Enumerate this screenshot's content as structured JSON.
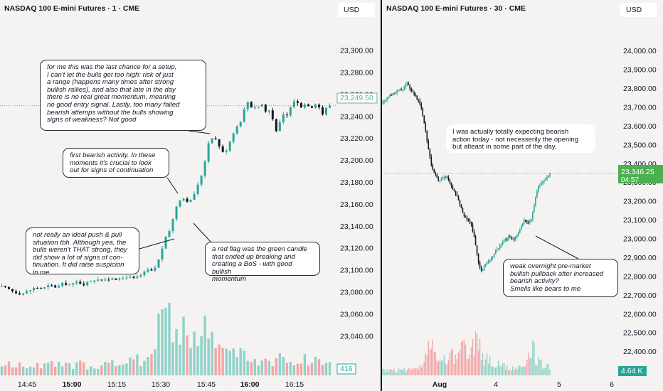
{
  "left_panel": {
    "title": "NASDAQ 100 E-mini Futures · 1 · CME",
    "currency": "USD",
    "price_label": "23,249.50",
    "volume_label": "416",
    "annotations": [
      "for me this was the last chance for a setup,\nI can't let the bulls get too high: risk of just\na range (happens many times after strong\nbullish rallies), and also that late in the day\nthere is no real great momentum, meaning\nno good entry signal. Lastly, too many failed\nbearish attemps without the bulls showing\nsigns of weakness? Not good",
      "first bearish activity. In these\nmoments it's crucial to look\nout for signs of continuation",
      "not really an ideal push & pull\nsituation tbh. Although yea, the\nbulls weren't THAT strong, they\ndid show a lot of signs of  con-\ntinuation. It did raise suspicion\nin me.",
      "a red flag was the green candle\nthat ended up breaking and\ncreating a BoS - with good bullish\nmomentum"
    ]
  },
  "right_panel": {
    "title": "NASDAQ 100 E-mini Futures · 30 · CME",
    "currency": "USD",
    "price_label": "23,346.25",
    "countdown_label": "04:57",
    "volume_label": "4.64 K",
    "annotations": [
      "I was actually totally expecting bearish\naction today - not necesserily the opening\nbut atleast in some part of the day.",
      "weak overnight pre-market\nbullish pullback after increased\nbearish activity?\nSmells like bears to me"
    ]
  },
  "colors": {
    "bull": "#26a69a",
    "bear": "#131722",
    "bull_volume": "#8fd1c8",
    "bear_volume": "#f3a5a5",
    "price_tag_left": "#5fb88f",
    "price_tag_right": "#4caf50"
  },
  "chart_data": [
    {
      "type": "candlestick",
      "timeframe": "1",
      "y_ticks": [
        "23,300.00",
        "23,280.00",
        "23,260.00",
        "23,240.00",
        "23,220.00",
        "23,200.00",
        "23,180.00",
        "23,160.00",
        "23,140.00",
        "23,120.00",
        "23,100.00",
        "23,080.00",
        "23,060.00",
        "23,040.00"
      ],
      "x_ticks": [
        "14:45",
        "15:00",
        "15:15",
        "15:30",
        "15:45",
        "16:00",
        "16:15"
      ],
      "x_tick_bold": [
        false,
        true,
        false,
        false,
        false,
        true,
        false
      ],
      "ylim": [
        23026,
        23312
      ],
      "close_path": [
        [
          0,
          23085
        ],
        [
          10,
          23083
        ],
        [
          20,
          23080
        ],
        [
          30,
          23078
        ],
        [
          40,
          23081
        ],
        [
          50,
          23084
        ],
        [
          60,
          23083
        ],
        [
          70,
          23086
        ],
        [
          80,
          23084
        ],
        [
          90,
          23088
        ],
        [
          100,
          23086
        ],
        [
          108,
          23089
        ],
        [
          118,
          23087
        ],
        [
          128,
          23090
        ],
        [
          138,
          23092
        ],
        [
          148,
          23090
        ],
        [
          158,
          23093
        ],
        [
          168,
          23091
        ],
        [
          178,
          23094
        ],
        [
          188,
          23092
        ],
        [
          198,
          23095
        ],
        [
          208,
          23100
        ],
        [
          215,
          23098
        ],
        [
          220,
          23105
        ],
        [
          225,
          23112
        ],
        [
          228,
          23120
        ],
        [
          232,
          23128
        ],
        [
          236,
          23132
        ],
        [
          240,
          23140
        ],
        [
          244,
          23148
        ],
        [
          248,
          23158
        ],
        [
          252,
          23165
        ],
        [
          256,
          23162
        ],
        [
          260,
          23168
        ],
        [
          265,
          23160
        ],
        [
          270,
          23165
        ],
        [
          275,
          23172
        ],
        [
          280,
          23180
        ],
        [
          285,
          23190
        ],
        [
          290,
          23205
        ],
        [
          295,
          23222
        ],
        [
          300,
          23220
        ],
        [
          305,
          23218
        ],
        [
          310,
          23210
        ],
        [
          315,
          23205
        ],
        [
          320,
          23212
        ],
        [
          325,
          23220
        ],
        [
          330,
          23228
        ],
        [
          335,
          23232
        ],
        [
          340,
          23238
        ],
        [
          345,
          23250
        ],
        [
          350,
          23255
        ],
        [
          355,
          23245
        ],
        [
          360,
          23250
        ],
        [
          365,
          23248
        ],
        [
          370,
          23252
        ],
        [
          375,
          23240
        ],
        [
          380,
          23248
        ],
        [
          385,
          23232
        ],
        [
          390,
          23225
        ],
        [
          395,
          23238
        ],
        [
          400,
          23242
        ],
        [
          405,
          23240
        ],
        [
          410,
          23252
        ],
        [
          415,
          23255
        ],
        [
          420,
          23250
        ],
        [
          425,
          23248
        ],
        [
          430,
          23252
        ],
        [
          435,
          23249
        ],
        [
          440,
          23248
        ],
        [
          445,
          23253
        ],
        [
          450,
          23246
        ],
        [
          455,
          23240
        ],
        [
          460,
          23250
        ],
        [
          466,
          23249.5
        ]
      ],
      "volume_path": [
        [
          0,
          0.08
        ],
        [
          100,
          0.08
        ],
        [
          180,
          0.1
        ],
        [
          205,
          0.14
        ],
        [
          215,
          0.22
        ],
        [
          225,
          0.58
        ],
        [
          240,
          0.42
        ],
        [
          252,
          0.34
        ],
        [
          275,
          0.3
        ],
        [
          290,
          0.36
        ],
        [
          310,
          0.22
        ],
        [
          360,
          0.12
        ],
        [
          420,
          0.13
        ],
        [
          466,
          0.11
        ]
      ]
    },
    {
      "type": "candlestick",
      "timeframe": "30",
      "y_ticks": [
        "24,000.00",
        "23,900.00",
        "23,800.00",
        "23,700.00",
        "23,600.00",
        "23,500.00",
        "23,400.00",
        "23,300.00",
        "23,200.00",
        "23,100.00",
        "23,000.00",
        "22,900.00",
        "22,800.00",
        "22,700.00",
        "22,600.00",
        "22,500.00",
        "22,400.00"
      ],
      "x_ticks": [
        "Aug",
        "4",
        "5",
        "6"
      ],
      "x_tick_bold": [
        true,
        false,
        false,
        false
      ],
      "ylim": [
        22340,
        24080
      ],
      "close_path": [
        [
          0,
          23720
        ],
        [
          10,
          23760
        ],
        [
          20,
          23780
        ],
        [
          30,
          23800
        ],
        [
          35,
          23830
        ],
        [
          40,
          23790
        ],
        [
          45,
          23770
        ],
        [
          50,
          23740
        ],
        [
          55,
          23700
        ],
        [
          60,
          23600
        ],
        [
          65,
          23480
        ],
        [
          70,
          23380
        ],
        [
          75,
          23340
        ],
        [
          80,
          23300
        ],
        [
          85,
          23320
        ],
        [
          90,
          23330
        ],
        [
          95,
          23300
        ],
        [
          100,
          23260
        ],
        [
          105,
          23230
        ],
        [
          110,
          23180
        ],
        [
          115,
          23120
        ],
        [
          120,
          23100
        ],
        [
          125,
          23080
        ],
        [
          130,
          23000
        ],
        [
          135,
          22880
        ],
        [
          140,
          22820
        ],
        [
          145,
          22860
        ],
        [
          150,
          22880
        ],
        [
          155,
          22900
        ],
        [
          160,
          22930
        ],
        [
          165,
          22960
        ],
        [
          170,
          22980
        ],
        [
          175,
          23000
        ],
        [
          180,
          23010
        ],
        [
          185,
          22990
        ],
        [
          190,
          23020
        ],
        [
          195,
          23060
        ],
        [
          200,
          23100
        ],
        [
          205,
          23080
        ],
        [
          210,
          23100
        ],
        [
          215,
          23200
        ],
        [
          220,
          23280
        ],
        [
          225,
          23300
        ],
        [
          230,
          23320
        ],
        [
          237,
          23346.25
        ]
      ],
      "volume_path": [
        [
          0,
          0.04
        ],
        [
          50,
          0.05
        ],
        [
          60,
          0.12
        ],
        [
          70,
          0.3
        ],
        [
          80,
          0.1
        ],
        [
          130,
          0.28
        ],
        [
          135,
          0.38
        ],
        [
          140,
          0.16
        ],
        [
          170,
          0.08
        ],
        [
          200,
          0.06
        ],
        [
          212,
          0.25
        ],
        [
          218,
          0.12
        ],
        [
          237,
          0.06
        ]
      ]
    }
  ]
}
